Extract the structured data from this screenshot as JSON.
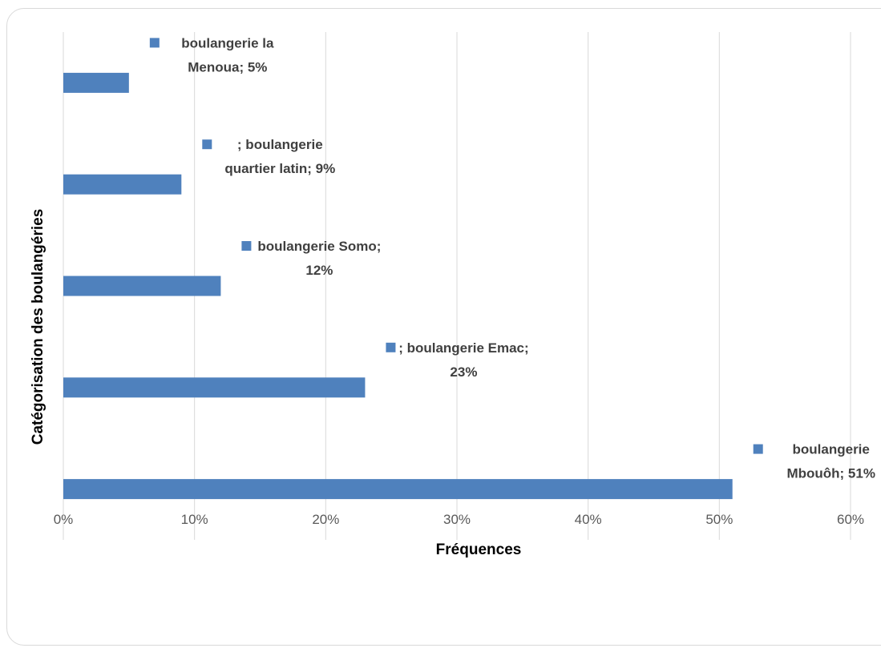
{
  "chart_data": {
    "type": "bar",
    "orientation": "horizontal",
    "title": "",
    "xlabel": "Fréquences",
    "ylabel": "Catégorisation des boulangéries",
    "xlim": [
      0,
      60
    ],
    "x_ticks": [
      "0%",
      "10%",
      "20%",
      "30%",
      "40%",
      "50%",
      "60%"
    ],
    "grid": true,
    "bar_color": "#4f81bd",
    "categories": [
      {
        "label_lines": [
          "boulangerie la",
          "Menoua; 5%"
        ],
        "value": 5
      },
      {
        "label_lines": [
          "; boulangerie",
          "quartier latin; 9%"
        ],
        "value": 9
      },
      {
        "label_lines": [
          "boulangerie Somo;",
          "12%"
        ],
        "value": 12
      },
      {
        "label_lines": [
          "; boulangerie Emac;",
          "23%"
        ],
        "value": 23
      },
      {
        "label_lines": [
          "boulangerie",
          "Mbouôh; 51%"
        ],
        "value": 51
      }
    ]
  }
}
